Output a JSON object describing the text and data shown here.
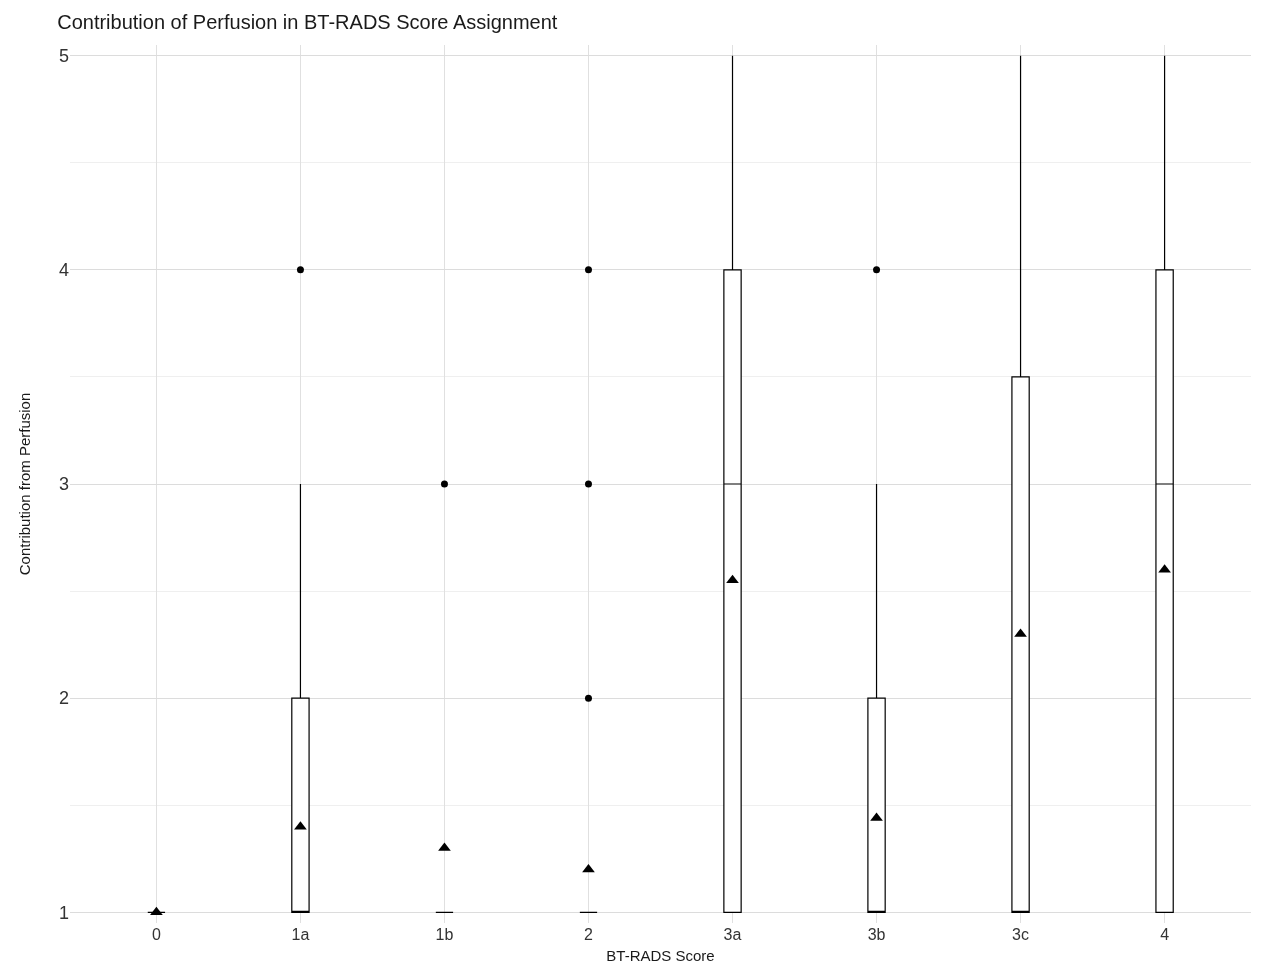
{
  "chart_data": {
    "type": "box",
    "title": "Contribution of Perfusion in BT-RADS Score Assignment",
    "xlabel": "BT-RADS Score",
    "ylabel": "Contribution from Perfusion",
    "categories": [
      "0",
      "1a",
      "1b",
      "2",
      "3a",
      "3b",
      "3c",
      "4"
    ],
    "boxes": [
      {
        "low": 1,
        "q1": 1,
        "median": 1,
        "q3": 1,
        "high": 1,
        "mean": 1
      },
      {
        "low": 1,
        "q1": 1,
        "median": 1,
        "q3": 2,
        "high": 3,
        "mean": 1.4,
        "outliers": [
          4
        ]
      },
      {
        "low": 1,
        "q1": 1,
        "median": 1,
        "q3": 1,
        "high": 1,
        "mean": 1.3,
        "outliers": [
          3
        ]
      },
      {
        "low": 1,
        "q1": 1,
        "median": 1,
        "q3": 1,
        "high": 1,
        "mean": 1.2,
        "outliers": [
          2,
          3,
          4
        ]
      },
      {
        "low": 1,
        "q1": 1,
        "median": 3,
        "q3": 4,
        "high": 5,
        "mean": 2.55
      },
      {
        "low": 1,
        "q1": 1,
        "median": 1,
        "q3": 2,
        "high": 3,
        "mean": 1.44,
        "outliers": [
          4
        ]
      },
      {
        "low": 1,
        "q1": 1,
        "median": 1,
        "q3": 3.5,
        "high": 5,
        "mean": 2.3
      },
      {
        "low": 1,
        "q1": 1,
        "median": 3,
        "q3": 4,
        "high": 5,
        "mean": 2.6
      }
    ],
    "ylim": [
      0.95,
      5.05
    ],
    "yticks": [
      1,
      2,
      3,
      4,
      5
    ],
    "grid": true,
    "marker": "triangle"
  }
}
